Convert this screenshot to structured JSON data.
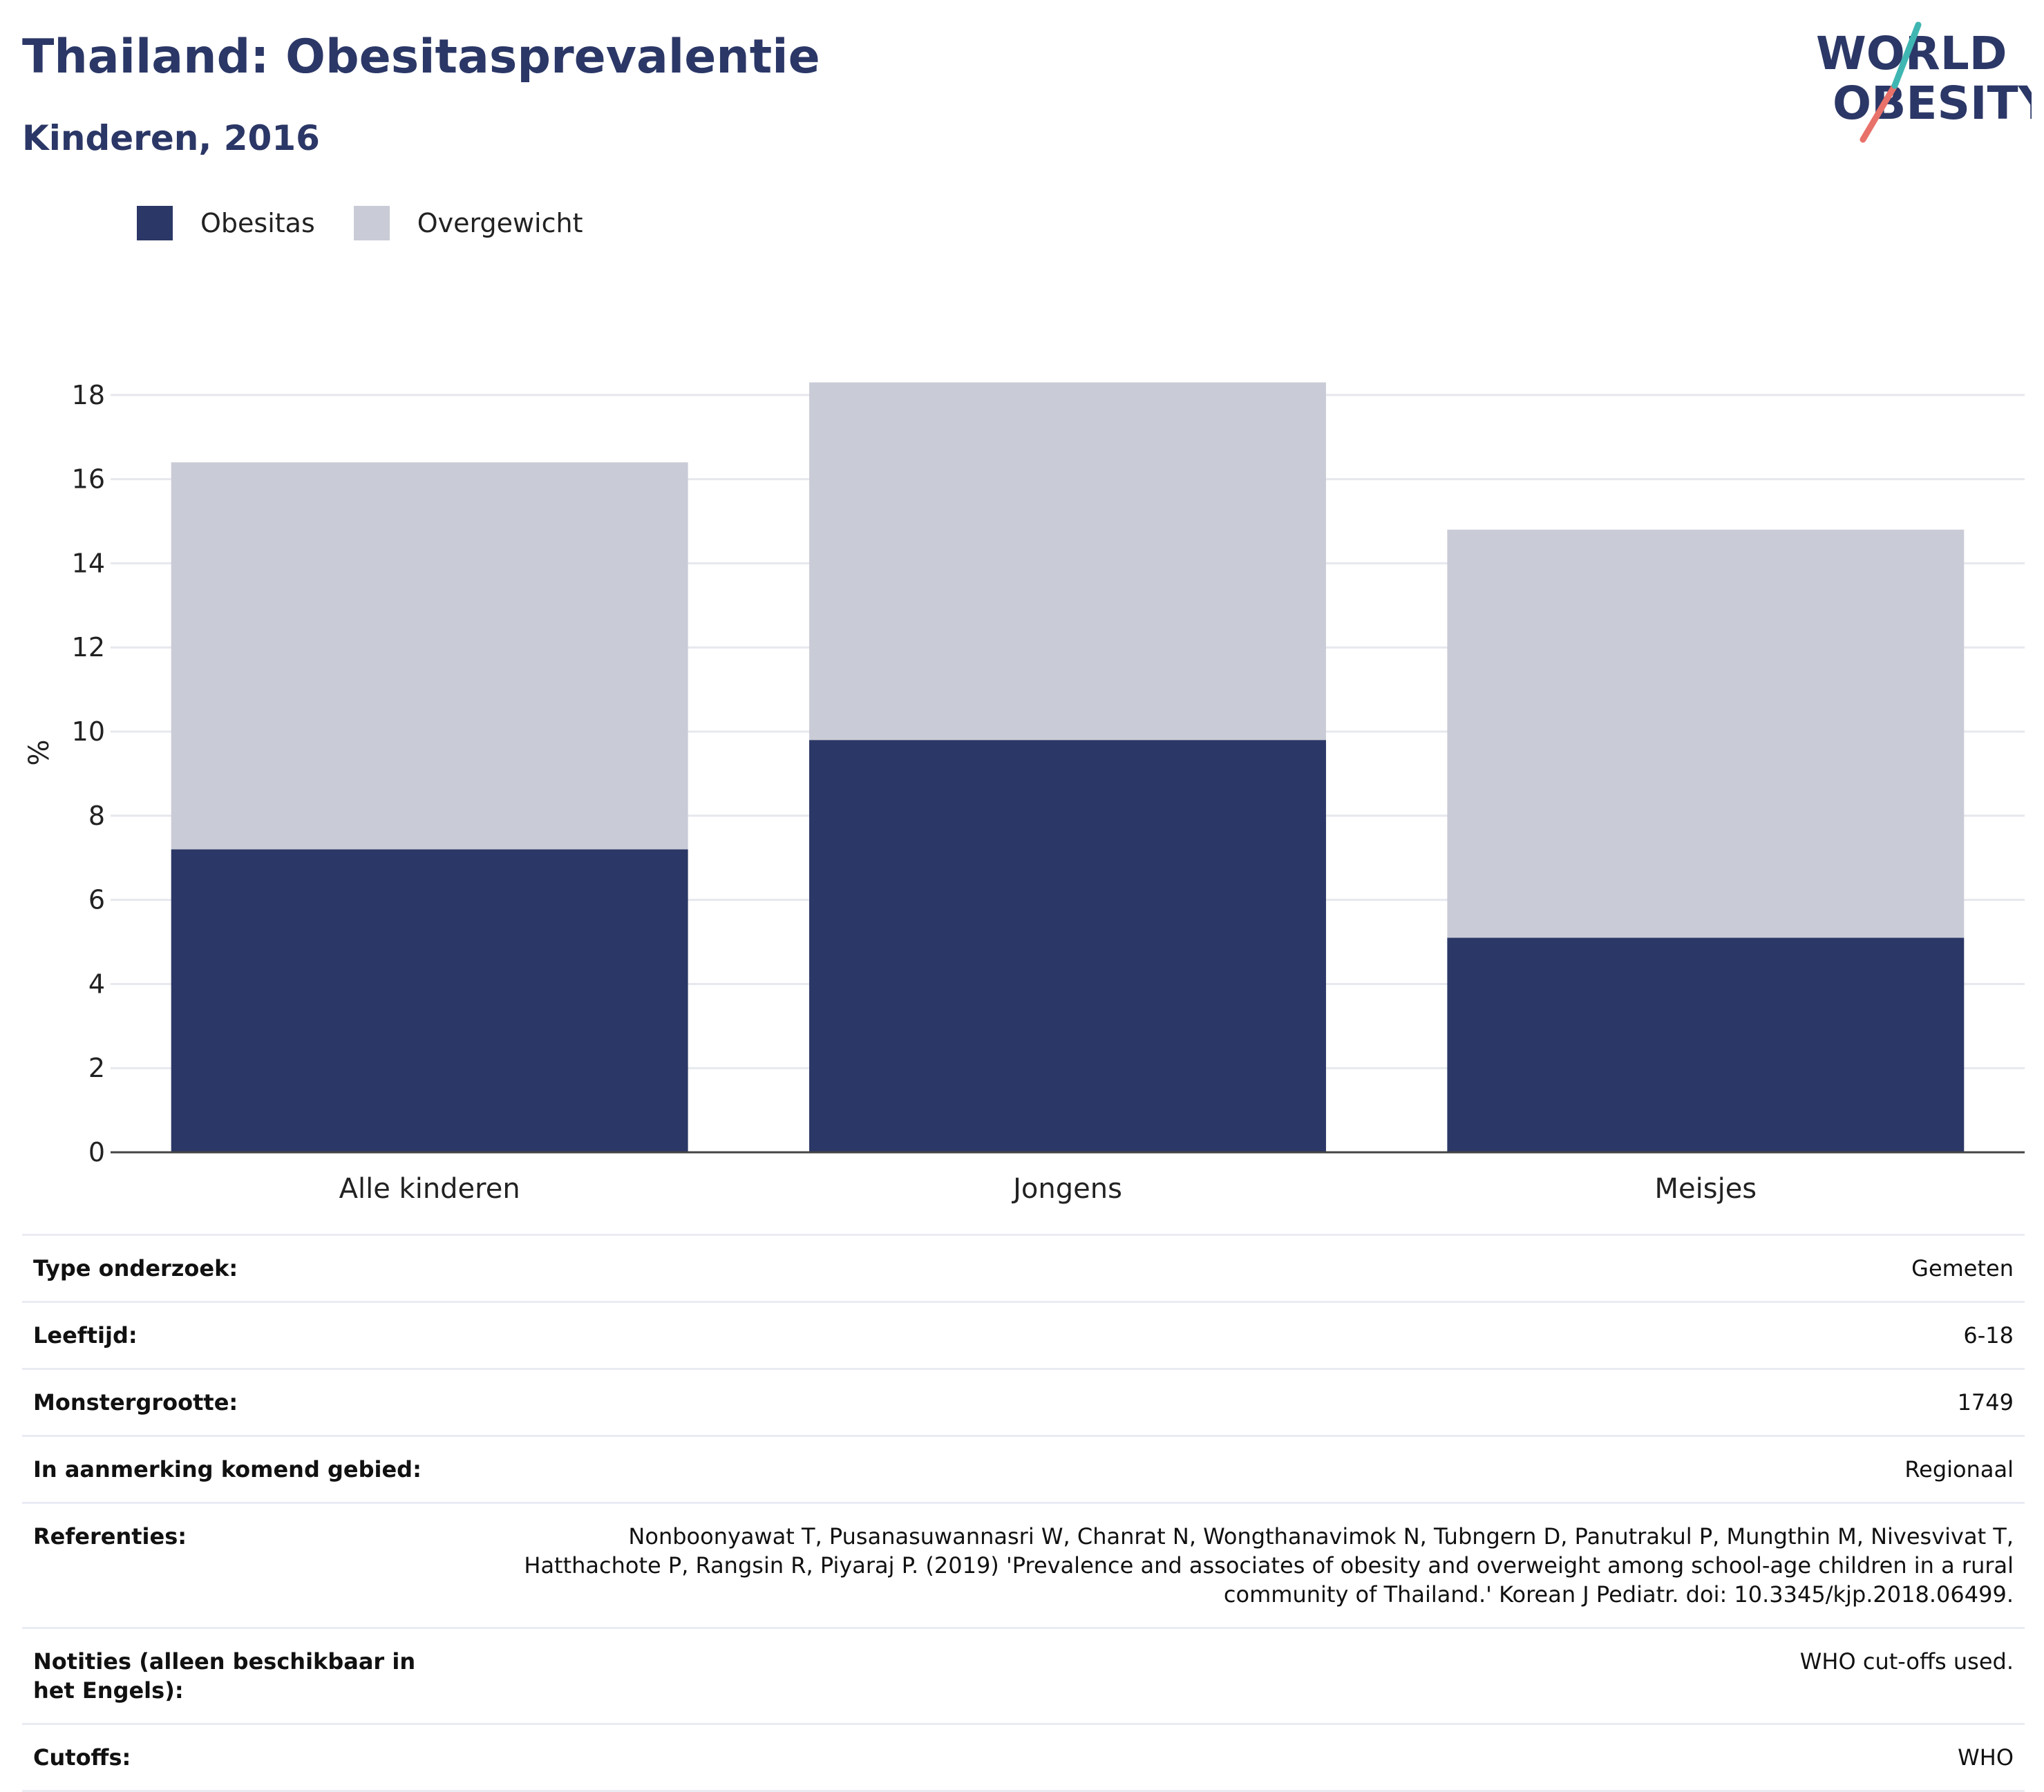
{
  "header": {
    "title": "Thailand: Obesitasprevalentie",
    "subtitle": "Kinderen, 2016"
  },
  "logo": {
    "line1": "WORLD",
    "line2": "OBESITY",
    "colors": {
      "text": "#2b3766",
      "slash_top": "#3fb6b2",
      "slash_bottom": "#e8716a"
    }
  },
  "colors": {
    "obesity": "#2b3766",
    "overweight": "#c9cbd6",
    "grid": "#e6e8ee",
    "axis": "#444444"
  },
  "chart_data": {
    "type": "bar",
    "stacked": true,
    "categories": [
      "Alle kinderen",
      "Jongens",
      "Meisjes"
    ],
    "series": [
      {
        "name": "Obesitas",
        "color": "#2b3766",
        "values": [
          7.2,
          9.8,
          5.1
        ]
      },
      {
        "name": "Overgewicht",
        "color": "#c9cbd6",
        "values": [
          9.2,
          8.5,
          9.7
        ]
      }
    ],
    "ylabel": "%",
    "ylim": [
      0,
      19
    ],
    "yticks": [
      "0",
      "2",
      "4",
      "6",
      "8",
      "10",
      "12",
      "14",
      "16",
      "18"
    ],
    "grid": true,
    "legend_position": "top-left"
  },
  "info": [
    {
      "label": "Type onderzoek:",
      "value": "Gemeten"
    },
    {
      "label": "Leeftijd:",
      "value": "6-18"
    },
    {
      "label": "Monstergrootte:",
      "value": "1749"
    },
    {
      "label": "In aanmerking komend gebied:",
      "value": "Regionaal"
    },
    {
      "label": "Referenties:",
      "value": "Nonboonyawat T, Pusanasuwannasri W, Chanrat N, Wongthanavimok N, Tubngern D, Panutrakul P, Mungthin M, Nivesvivat T, Hatthachote P, Rangsin R, Piyaraj P. (2019) 'Prevalence and associates of obesity and overweight among school-age children in a rural community of Thailand.' Korean J Pediatr. doi: 10.3345/kjp.2018.06499."
    },
    {
      "label": "Notities (alleen beschikbaar in het Engels):",
      "value": "WHO cut-offs used."
    },
    {
      "label": "Cutoffs:",
      "value": "WHO"
    }
  ]
}
